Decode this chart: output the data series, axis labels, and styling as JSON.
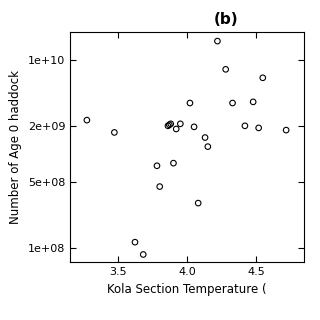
{
  "title": "(b)",
  "xlabel": "Kola Section Temperature (",
  "ylabel": "Number of Age 0 haddock",
  "x_data": [
    3.27,
    3.47,
    3.62,
    3.68,
    3.78,
    3.8,
    3.86,
    3.87,
    3.88,
    3.9,
    3.92,
    3.95,
    4.02,
    4.05,
    4.08,
    4.13,
    4.15,
    4.22,
    4.28,
    4.33,
    4.42,
    4.48,
    4.52,
    4.55,
    4.72
  ],
  "y_data": [
    2300000000.0,
    1700000000.0,
    115000000.0,
    85000000.0,
    750000000.0,
    450000000.0,
    2000000000.0,
    2050000000.0,
    2100000000.0,
    800000000.0,
    1850000000.0,
    2100000000.0,
    3500000000.0,
    1950000000.0,
    300000000.0,
    1500000000.0,
    1200000000.0,
    16000000000.0,
    8000000000.0,
    3500000000.0,
    2000000000.0,
    3600000000.0,
    1900000000.0,
    6500000000.0,
    1800000000.0
  ],
  "xlim": [
    3.15,
    4.85
  ],
  "ylim": [
    70000000.0,
    20000000000.0
  ],
  "xticks": [
    3.5,
    4.0,
    4.5
  ],
  "yticks": [
    100000000.0,
    500000000.0,
    2000000000.0,
    10000000000.0
  ],
  "ytick_labels": [
    "1e+08",
    "5e+08",
    "2e+09",
    "1e+10"
  ],
  "background_color": "#ffffff",
  "marker_color": "none",
  "marker_edge_color": "#000000",
  "marker_size": 4,
  "title_fontsize": 11,
  "label_fontsize": 8.5,
  "tick_fontsize": 8
}
